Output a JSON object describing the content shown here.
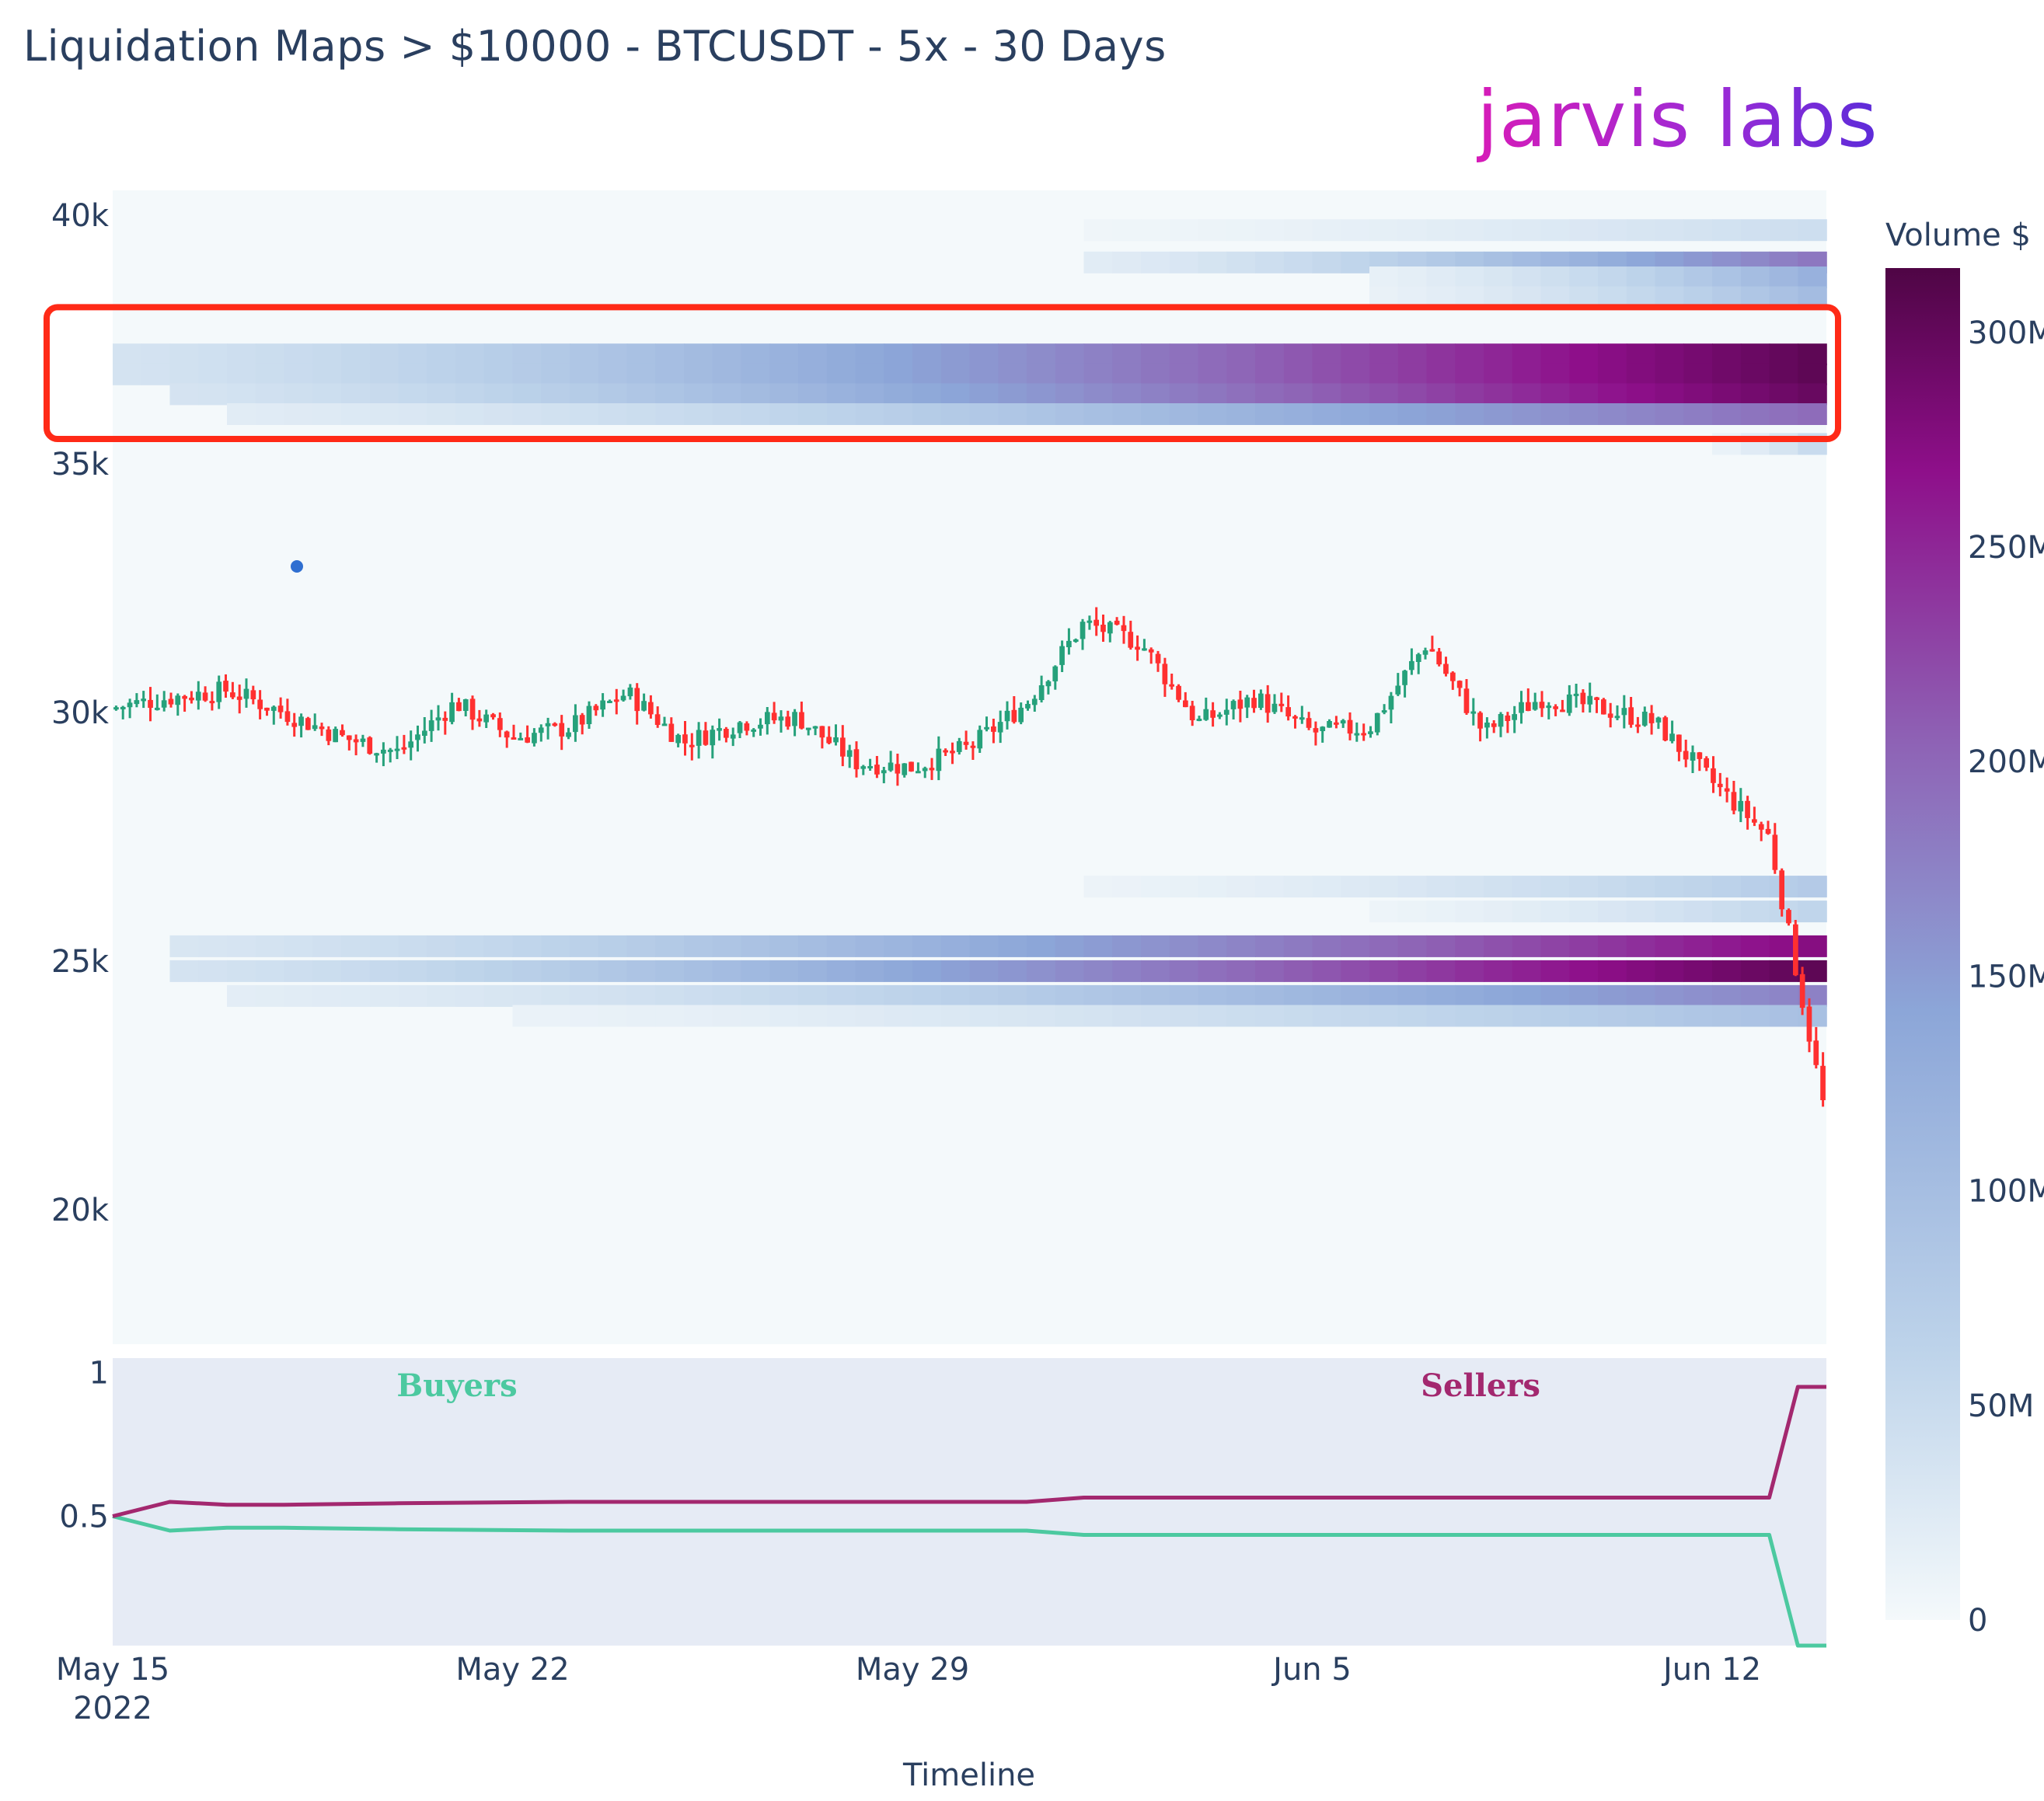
{
  "header": {
    "title": "Liquidation Maps > $10000 - BTCUSDT - 5x - 30 Days",
    "brand": "jarvis labs"
  },
  "colors": {
    "increasing": "#26a17b",
    "decreasing": "#ff3030",
    "buyers": "#4cc9a0",
    "sellers": "#a3286f",
    "highlight_box": "#ff2a17",
    "marker_dot": "#2f6fd1",
    "heatmap_scale": [
      "#f4f9fb",
      "#bdd3ea",
      "#8ca6d8",
      "#8e62b5",
      "#8e0f8a",
      "#4f0545"
    ]
  },
  "chart_data": [
    {
      "type": "heatmap",
      "title": "Liquidation Maps > $10000 - BTCUSDT - 5x - 30 Days",
      "xlabel": "Timeline",
      "x_range": [
        "2022-05-15",
        "2022-06-14"
      ],
      "x_ticks": [
        {
          "date": "2022-05-15",
          "label": "May 15",
          "sublabel": "2022"
        },
        {
          "date": "2022-05-22",
          "label": "May 22"
        },
        {
          "date": "2022-05-29",
          "label": "May 29"
        },
        {
          "date": "2022-06-05",
          "label": "Jun 5"
        },
        {
          "date": "2022-06-12",
          "label": "Jun 12"
        }
      ],
      "ylim": [
        17300,
        40500
      ],
      "y_ticks": [
        {
          "value": 40000,
          "label": "40k"
        },
        {
          "value": 35000,
          "label": "35k"
        },
        {
          "value": 30000,
          "label": "30k"
        },
        {
          "value": 25000,
          "label": "25k"
        },
        {
          "value": 20000,
          "label": "20k"
        }
      ],
      "colorbar": {
        "title": "Volume $",
        "range": [
          0,
          315000000
        ],
        "ticks": [
          {
            "value": 0,
            "label": "0"
          },
          {
            "value": 50000000,
            "label": "50M"
          },
          {
            "value": 100000000,
            "label": "100M"
          },
          {
            "value": 150000000,
            "label": "150M"
          },
          {
            "value": 200000000,
            "label": "200M"
          },
          {
            "value": 250000000,
            "label": "250M"
          },
          {
            "value": 300000000,
            "label": "300M"
          }
        ]
      },
      "liquidation_bands": [
        {
          "price": 39700,
          "start": "2022-06-01",
          "peak": 45000000
        },
        {
          "price": 39050,
          "start": "2022-06-01",
          "peak": 170000000
        },
        {
          "price": 38750,
          "start": "2022-06-06",
          "peak": 110000000
        },
        {
          "price": 38350,
          "start": "2022-06-06",
          "peak": 95000000
        },
        {
          "price": 37200,
          "start": "2022-05-15",
          "peak": 300000000
        },
        {
          "price": 36800,
          "start": "2022-05-15",
          "peak": 300000000
        },
        {
          "price": 36400,
          "start": "2022-05-16",
          "peak": 290000000
        },
        {
          "price": 36000,
          "start": "2022-05-17",
          "peak": 180000000
        },
        {
          "price": 35400,
          "start": "2022-06-12",
          "peak": 50000000
        },
        {
          "price": 26500,
          "start": "2022-06-01",
          "peak": 75000000
        },
        {
          "price": 26000,
          "start": "2022-06-06",
          "peak": 60000000
        },
        {
          "price": 25300,
          "start": "2022-05-16",
          "peak": 260000000
        },
        {
          "price": 24800,
          "start": "2022-05-16",
          "peak": 300000000
        },
        {
          "price": 24300,
          "start": "2022-05-17",
          "peak": 160000000
        },
        {
          "price": 23900,
          "start": "2022-05-22",
          "peak": 90000000
        }
      ],
      "highlighted_region": {
        "price_low": 35500,
        "price_high": 38150
      },
      "candlestick_daily_close": [
        {
          "date": "2022-05-15",
          "close": 30100
        },
        {
          "date": "2022-05-16",
          "close": 30300
        },
        {
          "date": "2022-05-17",
          "close": 30450
        },
        {
          "date": "2022-05-18",
          "close": 30000
        },
        {
          "date": "2022-05-19",
          "close": 29500
        },
        {
          "date": "2022-05-20",
          "close": 29200
        },
        {
          "date": "2022-05-21",
          "close": 30200
        },
        {
          "date": "2022-05-22",
          "close": 29500
        },
        {
          "date": "2022-05-23",
          "close": 29700
        },
        {
          "date": "2022-05-24",
          "close": 30400
        },
        {
          "date": "2022-05-25",
          "close": 29400
        },
        {
          "date": "2022-05-26",
          "close": 29800
        },
        {
          "date": "2022-05-27",
          "close": 29900
        },
        {
          "date": "2022-05-28",
          "close": 29000
        },
        {
          "date": "2022-05-29",
          "close": 28900
        },
        {
          "date": "2022-05-30",
          "close": 29300
        },
        {
          "date": "2022-05-31",
          "close": 30200
        },
        {
          "date": "2022-06-01",
          "close": 31800
        },
        {
          "date": "2022-06-02",
          "close": 31400
        },
        {
          "date": "2022-06-03",
          "close": 29800
        },
        {
          "date": "2022-06-04",
          "close": 30300
        },
        {
          "date": "2022-06-05",
          "close": 29600
        },
        {
          "date": "2022-06-06",
          "close": 29700
        },
        {
          "date": "2022-06-07",
          "close": 31400
        },
        {
          "date": "2022-06-08",
          "close": 29600
        },
        {
          "date": "2022-06-09",
          "close": 30300
        },
        {
          "date": "2022-06-10",
          "close": 30100
        },
        {
          "date": "2022-06-11",
          "close": 29800
        },
        {
          "date": "2022-06-12",
          "close": 28600
        },
        {
          "date": "2022-06-13",
          "close": 27500
        },
        {
          "date": "2022-06-14",
          "close": 21800
        }
      ]
    },
    {
      "type": "line",
      "ylim": [
        0.05,
        1.05
      ],
      "y_ticks": [
        {
          "value": 1,
          "label": "1"
        },
        {
          "value": 0.5,
          "label": "0.5"
        }
      ],
      "annotations": [
        "Buyers",
        "Sellers"
      ],
      "x": [
        "2022-05-15",
        "2022-05-16",
        "2022-05-17",
        "2022-05-18",
        "2022-05-20",
        "2022-05-23",
        "2022-05-31",
        "2022-06-01",
        "2022-06-13",
        "2022-06-13T12:00",
        "2022-06-14"
      ],
      "series": [
        {
          "name": "Buyers",
          "values": [
            0.5,
            0.45,
            0.46,
            0.46,
            0.455,
            0.45,
            0.45,
            0.435,
            0.435,
            0.05,
            0.05
          ]
        },
        {
          "name": "Sellers",
          "values": [
            0.5,
            0.55,
            0.54,
            0.54,
            0.545,
            0.55,
            0.55,
            0.565,
            0.565,
            0.95,
            0.95
          ]
        }
      ]
    }
  ]
}
